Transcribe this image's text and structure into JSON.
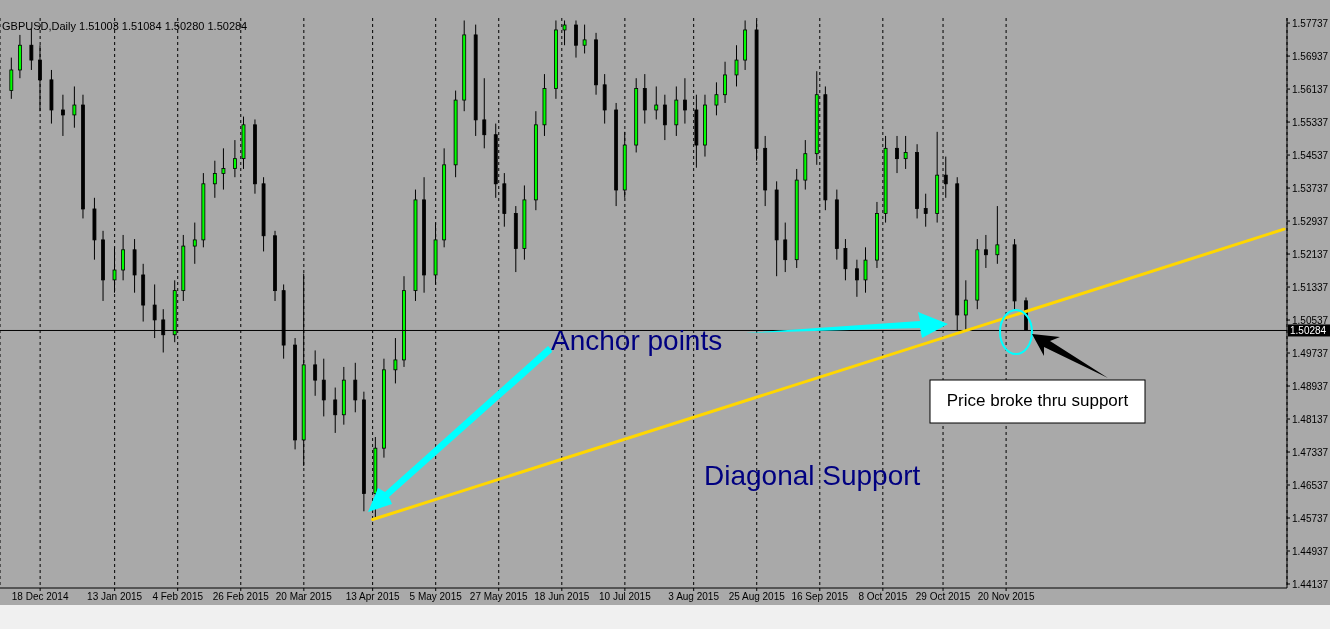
{
  "chart_data": {
    "type": "candlestick",
    "title": "GBPUSD,Daily 1.51003 1.51084 1.50280 1.50284",
    "x": [
      "2014-12-08",
      "2014-12-11",
      "2014-12-15",
      "2014-12-18",
      "2014-12-22",
      "2014-12-26",
      "2014-12-30",
      "2015-01-02",
      "2015-01-06",
      "2015-01-09",
      "2015-01-13",
      "2015-01-16",
      "2015-01-20",
      "2015-01-23",
      "2015-01-27",
      "2015-01-30",
      "2015-02-03",
      "2015-02-06",
      "2015-02-10",
      "2015-02-13",
      "2015-02-17",
      "2015-02-20",
      "2015-02-24",
      "2015-02-27",
      "2015-03-03",
      "2015-03-06",
      "2015-03-10",
      "2015-03-13",
      "2015-03-17",
      "2015-03-20",
      "2015-03-24",
      "2015-03-27",
      "2015-03-31",
      "2015-04-03",
      "2015-04-07",
      "2015-04-10",
      "2015-04-14",
      "2015-04-17",
      "2015-04-21",
      "2015-04-24",
      "2015-04-28",
      "2015-05-01",
      "2015-05-05",
      "2015-05-08",
      "2015-05-12",
      "2015-05-15",
      "2015-05-19",
      "2015-05-22",
      "2015-05-26",
      "2015-05-29",
      "2015-06-02",
      "2015-06-05",
      "2015-06-09",
      "2015-06-12",
      "2015-06-16",
      "2015-06-19",
      "2015-06-23",
      "2015-06-26",
      "2015-06-30",
      "2015-07-03",
      "2015-07-07",
      "2015-07-10",
      "2015-07-14",
      "2015-07-17",
      "2015-07-21",
      "2015-07-24",
      "2015-07-28",
      "2015-07-31",
      "2015-08-04",
      "2015-08-07",
      "2015-08-11",
      "2015-08-14",
      "2015-08-18",
      "2015-08-21",
      "2015-08-25",
      "2015-08-28",
      "2015-09-01",
      "2015-09-04",
      "2015-09-08",
      "2015-09-11",
      "2015-09-15",
      "2015-09-18",
      "2015-09-22",
      "2015-09-25",
      "2015-09-29",
      "2015-10-02",
      "2015-10-06",
      "2015-10-09",
      "2015-10-13",
      "2015-10-16",
      "2015-10-20",
      "2015-10-23",
      "2015-10-27",
      "2015-10-30",
      "2015-11-03",
      "2015-11-06",
      "2015-11-10",
      "2015-11-13",
      "2015-11-17",
      "2015-11-23",
      "2015-11-27"
    ],
    "ohlc": [
      [
        1.561,
        1.569,
        1.559,
        1.566
      ],
      [
        1.566,
        1.5745,
        1.564,
        1.572
      ],
      [
        1.572,
        1.576,
        1.566,
        1.5684
      ],
      [
        1.5684,
        1.572,
        1.556,
        1.5636
      ],
      [
        1.5636,
        1.566,
        1.553,
        1.5563
      ],
      [
        1.5563,
        1.56,
        1.55,
        1.5551
      ],
      [
        1.5551,
        1.562,
        1.552,
        1.5575
      ],
      [
        1.5575,
        1.56,
        1.53,
        1.5323
      ],
      [
        1.5323,
        1.535,
        1.52,
        1.5248
      ],
      [
        1.5248,
        1.527,
        1.51,
        1.5151
      ],
      [
        1.5151,
        1.523,
        1.512,
        1.5175
      ],
      [
        1.5175,
        1.526,
        1.515,
        1.5224
      ],
      [
        1.5224,
        1.525,
        1.512,
        1.5163
      ],
      [
        1.5163,
        1.519,
        1.505,
        1.509
      ],
      [
        1.509,
        1.514,
        1.501,
        1.5054
      ],
      [
        1.5054,
        1.508,
        1.4975,
        1.5018
      ],
      [
        1.5018,
        1.515,
        1.5,
        1.5125
      ],
      [
        1.5125,
        1.526,
        1.51,
        1.5233
      ],
      [
        1.5233,
        1.529,
        1.519,
        1.5248
      ],
      [
        1.5248,
        1.541,
        1.523,
        1.5384
      ],
      [
        1.5384,
        1.544,
        1.535,
        1.5409
      ],
      [
        1.5409,
        1.547,
        1.537,
        1.5421
      ],
      [
        1.5421,
        1.549,
        1.54,
        1.5445
      ],
      [
        1.5445,
        1.5547,
        1.542,
        1.5527
      ],
      [
        1.5527,
        1.554,
        1.536,
        1.5384
      ],
      [
        1.5384,
        1.54,
        1.522,
        1.5258
      ],
      [
        1.5258,
        1.527,
        1.51,
        1.5125
      ],
      [
        1.5125,
        1.514,
        1.496,
        1.4993
      ],
      [
        1.4993,
        1.501,
        1.474,
        1.4763
      ],
      [
        1.4763,
        1.5166,
        1.47,
        1.4945
      ],
      [
        1.4945,
        1.498,
        1.487,
        1.4908
      ],
      [
        1.4908,
        1.496,
        1.482,
        1.486
      ],
      [
        1.486,
        1.489,
        1.478,
        1.4824
      ],
      [
        1.4824,
        1.494,
        1.48,
        1.4908
      ],
      [
        1.4908,
        1.495,
        1.483,
        1.486
      ],
      [
        1.486,
        1.488,
        1.459,
        1.4633
      ],
      [
        1.4633,
        1.477,
        1.4571,
        1.4743
      ],
      [
        1.4743,
        1.496,
        1.472,
        1.4933
      ],
      [
        1.4933,
        1.501,
        1.49,
        1.4957
      ],
      [
        1.4957,
        1.516,
        1.494,
        1.5125
      ],
      [
        1.5125,
        1.537,
        1.51,
        1.5345
      ],
      [
        1.5345,
        1.54,
        1.512,
        1.5163
      ],
      [
        1.5163,
        1.529,
        1.514,
        1.5248
      ],
      [
        1.5248,
        1.547,
        1.523,
        1.543
      ],
      [
        1.543,
        1.561,
        1.54,
        1.5587
      ],
      [
        1.5587,
        1.578,
        1.556,
        1.5745
      ],
      [
        1.5745,
        1.577,
        1.55,
        1.5539
      ],
      [
        1.5539,
        1.564,
        1.547,
        1.5503
      ],
      [
        1.5503,
        1.553,
        1.535,
        1.5384
      ],
      [
        1.5384,
        1.541,
        1.528,
        1.5312
      ],
      [
        1.5312,
        1.533,
        1.517,
        1.5227
      ],
      [
        1.5227,
        1.538,
        1.52,
        1.5345
      ],
      [
        1.5345,
        1.556,
        1.532,
        1.5527
      ],
      [
        1.5527,
        1.565,
        1.55,
        1.5615
      ],
      [
        1.5615,
        1.578,
        1.559,
        1.5757
      ],
      [
        1.5757,
        1.578,
        1.572,
        1.5769
      ],
      [
        1.5769,
        1.578,
        1.569,
        1.572
      ],
      [
        1.572,
        1.577,
        1.57,
        1.5733
      ],
      [
        1.5733,
        1.575,
        1.56,
        1.5624
      ],
      [
        1.5624,
        1.565,
        1.553,
        1.5563
      ],
      [
        1.5563,
        1.558,
        1.533,
        1.5369
      ],
      [
        1.5369,
        1.551,
        1.535,
        1.5478
      ],
      [
        1.5478,
        1.564,
        1.546,
        1.5615
      ],
      [
        1.5615,
        1.565,
        1.553,
        1.5563
      ],
      [
        1.5563,
        1.562,
        1.554,
        1.5575
      ],
      [
        1.5575,
        1.56,
        1.549,
        1.5527
      ],
      [
        1.5527,
        1.562,
        1.55,
        1.5587
      ],
      [
        1.5587,
        1.564,
        1.553,
        1.5563
      ],
      [
        1.5563,
        1.56,
        1.5423,
        1.5478
      ],
      [
        1.5478,
        1.56,
        1.545,
        1.5575
      ],
      [
        1.5575,
        1.563,
        1.555,
        1.56
      ],
      [
        1.56,
        1.568,
        1.558,
        1.5648
      ],
      [
        1.5648,
        1.572,
        1.562,
        1.5684
      ],
      [
        1.5684,
        1.578,
        1.566,
        1.5757
      ],
      [
        1.5757,
        1.578,
        1.544,
        1.547
      ],
      [
        1.547,
        1.55,
        1.533,
        1.5369
      ],
      [
        1.5369,
        1.539,
        1.516,
        1.5248
      ],
      [
        1.5248,
        1.529,
        1.517,
        1.52
      ],
      [
        1.52,
        1.542,
        1.518,
        1.5393
      ],
      [
        1.5393,
        1.549,
        1.537,
        1.5457
      ],
      [
        1.5457,
        1.5657,
        1.543,
        1.56
      ],
      [
        1.56,
        1.562,
        1.532,
        1.5345
      ],
      [
        1.5345,
        1.537,
        1.52,
        1.5227
      ],
      [
        1.5227,
        1.525,
        1.515,
        1.5178
      ],
      [
        1.5178,
        1.52,
        1.511,
        1.5151
      ],
      [
        1.5151,
        1.523,
        1.512,
        1.5199
      ],
      [
        1.5199,
        1.534,
        1.518,
        1.5312
      ],
      [
        1.5312,
        1.55,
        1.529,
        1.547
      ],
      [
        1.547,
        1.55,
        1.541,
        1.5445
      ],
      [
        1.5445,
        1.55,
        1.542,
        1.546
      ],
      [
        1.546,
        1.548,
        1.53,
        1.5324
      ],
      [
        1.5324,
        1.536,
        1.528,
        1.5312
      ],
      [
        1.5312,
        1.551,
        1.529,
        1.5405
      ],
      [
        1.5405,
        1.545,
        1.535,
        1.5384
      ],
      [
        1.5384,
        1.54,
        1.5029,
        1.5066
      ],
      [
        1.5066,
        1.515,
        1.503,
        1.5102
      ],
      [
        1.5102,
        1.525,
        1.508,
        1.5224
      ],
      [
        1.5224,
        1.526,
        1.518,
        1.5212
      ],
      [
        1.5212,
        1.533,
        1.519,
        1.5236
      ],
      [
        1.5236,
        1.525,
        1.508,
        1.51
      ],
      [
        1.51003,
        1.51084,
        1.5028,
        1.50284
      ]
    ],
    "colors": [
      "#00ff00",
      "#00ff00",
      "#000000",
      "#000000",
      "#000000",
      "#000000",
      "#00ff00",
      "#000000",
      "#000000",
      "#000000",
      "#00ff00",
      "#00ff00",
      "#000000",
      "#000000",
      "#000000",
      "#000000",
      "#00ff00",
      "#00ff00",
      "#00ff00",
      "#00ff00",
      "#00ff00",
      "#00ff00",
      "#00ff00",
      "#00ff00",
      "#000000",
      "#000000",
      "#000000",
      "#000000",
      "#000000",
      "#00ff00",
      "#000000",
      "#000000",
      "#000000",
      "#00ff00",
      "#000000",
      "#000000",
      "#00ff00",
      "#00ff00",
      "#00ff00",
      "#00ff00",
      "#00ff00",
      "#000000",
      "#00ff00",
      "#00ff00",
      "#00ff00",
      "#00ff00",
      "#000000",
      "#000000",
      "#000000",
      "#000000",
      "#000000",
      "#00ff00",
      "#00ff00",
      "#00ff00",
      "#00ff00",
      "#00ff00",
      "#000000",
      "#00ff00",
      "#000000",
      "#000000",
      "#000000",
      "#00ff00",
      "#00ff00",
      "#000000",
      "#00ff00",
      "#000000",
      "#00ff00",
      "#000000",
      "#000000",
      "#00ff00",
      "#00ff00",
      "#00ff00",
      "#00ff00",
      "#00ff00",
      "#000000",
      "#000000",
      "#000000",
      "#000000",
      "#00ff00",
      "#00ff00",
      "#00ff00",
      "#000000",
      "#000000",
      "#000000",
      "#000000",
      "#00ff00",
      "#00ff00",
      "#00ff00",
      "#000000",
      "#00ff00",
      "#000000",
      "#000000",
      "#00ff00",
      "#000000",
      "#000000",
      "#00ff00",
      "#00ff00",
      "#000000",
      "#00ff00",
      "#000000",
      "#000000"
    ],
    "series": [
      {
        "type": "line",
        "x": [
          "2015-04-13",
          "2016-02-25"
        ],
        "values": [
          1.457,
          1.5274
        ],
        "color": "#ffd700"
      }
    ],
    "xlim": [
      "2014-12-04",
      "2016-02-26"
    ],
    "xticks": [
      {
        "value": "2014-12-18",
        "label": "18 Dec 2014"
      },
      {
        "value": "2015-01-13",
        "label": "13 Jan 2015"
      },
      {
        "value": "2015-02-04",
        "label": "4 Feb 2015"
      },
      {
        "value": "2015-02-26",
        "label": "26 Feb 2015"
      },
      {
        "value": "2015-03-20",
        "label": "20 Mar 2015"
      },
      {
        "value": "2015-04-13",
        "label": "13 Apr 2015"
      },
      {
        "value": "2015-05-05",
        "label": "5 May 2015"
      },
      {
        "value": "2015-05-27",
        "label": "27 May 2015"
      },
      {
        "value": "2015-06-18",
        "label": "18 Jun 2015"
      },
      {
        "value": "2015-07-10",
        "label": "10 Jul 2015"
      },
      {
        "value": "2015-08-03",
        "label": "3 Aug 2015"
      },
      {
        "value": "2015-08-25",
        "label": "25 Aug 2015"
      },
      {
        "value": "2015-09-16",
        "label": "16 Sep 2015"
      },
      {
        "value": "2015-10-08",
        "label": "8 Oct 2015"
      },
      {
        "value": "2015-10-29",
        "label": "29 Oct 2015"
      },
      {
        "value": "2015-11-20",
        "label": "20 Nov 2015"
      }
    ],
    "ylim": [
      1.4404,
      1.5786
    ],
    "yticks": [
      1.44137,
      1.44937,
      1.45737,
      1.46537,
      1.47337,
      1.48137,
      1.48937,
      1.49737,
      1.50537,
      1.51337,
      1.52137,
      1.52937,
      1.53737,
      1.54537,
      1.55337,
      1.56137,
      1.56937,
      1.57737
    ],
    "ref_lines": [
      {
        "axis": "y",
        "value": 1.50284,
        "label": "1.50284",
        "color": "#000000"
      }
    ],
    "grid": "x",
    "annotations": [
      "Anchor points",
      "Diagonal Support",
      "Price broke thru support"
    ]
  }
}
